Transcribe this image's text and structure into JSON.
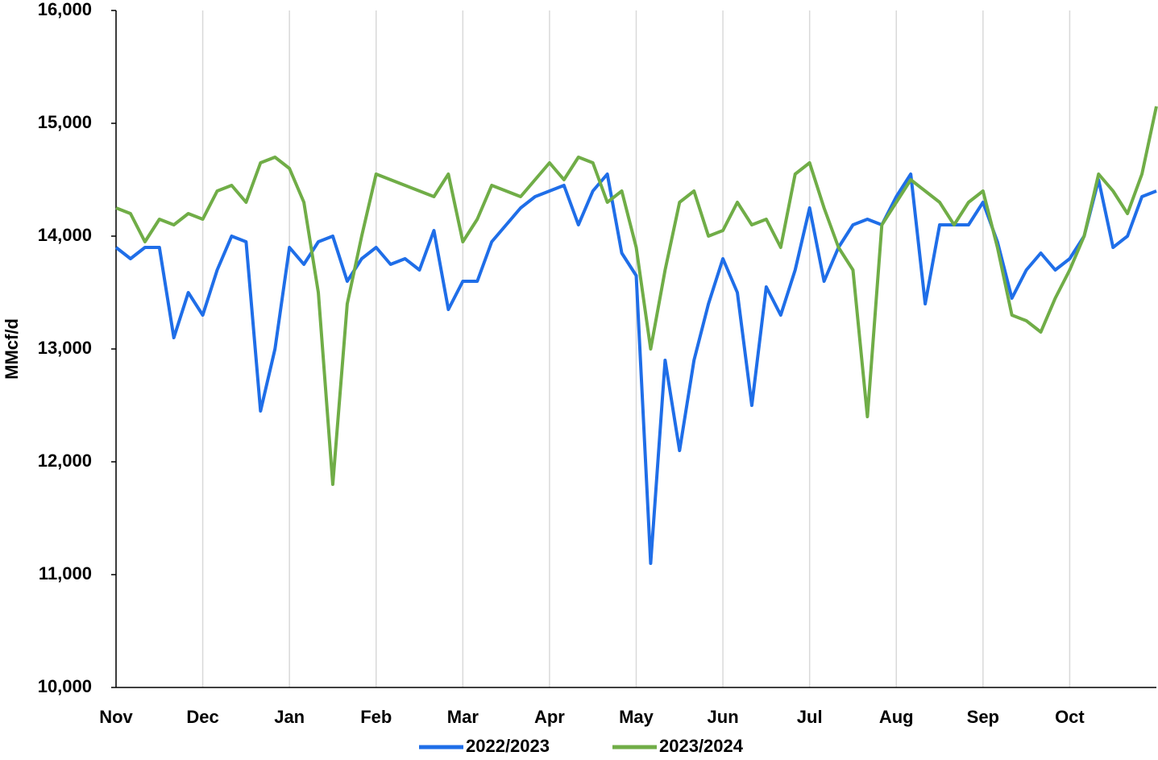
{
  "chart_data": {
    "type": "line",
    "y_label": "MMcf/d",
    "categories": [
      "Nov",
      null,
      null,
      null,
      null,
      null,
      "Dec",
      null,
      null,
      null,
      null,
      null,
      "Jan",
      null,
      null,
      null,
      null,
      null,
      "Feb",
      null,
      null,
      null,
      null,
      null,
      "Mar",
      null,
      null,
      null,
      null,
      null,
      "Apr",
      null,
      null,
      null,
      null,
      null,
      "May",
      null,
      null,
      null,
      null,
      null,
      "Jun",
      null,
      null,
      null,
      null,
      null,
      "Jul",
      null,
      null,
      null,
      null,
      null,
      "Aug",
      null,
      null,
      null,
      null,
      null,
      "Sep",
      null,
      null,
      null,
      null,
      null,
      "Oct",
      null,
      null,
      null,
      null,
      null,
      null
    ],
    "series": [
      {
        "name": "2022/2023",
        "color": "#1f6ee8",
        "values": [
          13900,
          13800,
          13900,
          13900,
          13100,
          13500,
          13300,
          13700,
          14000,
          13950,
          12450,
          13000,
          13900,
          13750,
          13950,
          14000,
          13600,
          13800,
          13900,
          13750,
          13800,
          13700,
          14050,
          13350,
          13600,
          13600,
          13950,
          14100,
          14250,
          14350,
          14400,
          14450,
          14100,
          14400,
          14550,
          13850,
          13650,
          11100,
          12900,
          12100,
          12900,
          13400,
          13800,
          13500,
          12500,
          13550,
          13300,
          13700,
          14250,
          13600,
          13900,
          14100,
          14150,
          14100,
          14350,
          14550,
          13400,
          14100,
          14100,
          14100,
          14300,
          13950,
          13450,
          13700,
          13850,
          13700,
          13800,
          14000,
          14500,
          13900,
          14000,
          14350,
          14400
        ]
      },
      {
        "name": "2023/2024",
        "color": "#70ad47",
        "values": [
          14250,
          14200,
          13950,
          14150,
          14100,
          14200,
          14150,
          14400,
          14450,
          14300,
          14650,
          14700,
          14600,
          14300,
          13500,
          11800,
          13400,
          14000,
          14550,
          14500,
          14450,
          14400,
          14350,
          14550,
          13950,
          14150,
          14450,
          14400,
          14350,
          14500,
          14650,
          14500,
          14700,
          14650,
          14300,
          14400,
          13900,
          13000,
          13700,
          14300,
          14400,
          14000,
          14050,
          14300,
          14100,
          14150,
          13900,
          14550,
          14650,
          14250,
          13900,
          13700,
          12400,
          14100,
          14300,
          14500,
          14400,
          14300,
          14100,
          14300,
          14400,
          13900,
          13300,
          13250,
          13150,
          13450,
          13700,
          14000,
          14550,
          14400,
          14200,
          14550,
          15150
        ]
      }
    ],
    "ylim": [
      10000,
      16000
    ],
    "yticks": [
      {
        "value": 10000,
        "label": "10,000"
      },
      {
        "value": 11000,
        "label": "11,000"
      },
      {
        "value": 12000,
        "label": "12,000"
      },
      {
        "value": 13000,
        "label": "13,000"
      },
      {
        "value": 14000,
        "label": "14,000"
      },
      {
        "value": 15000,
        "label": "15,000"
      },
      {
        "value": 16000,
        "label": "16,000"
      }
    ],
    "grid": true,
    "legend": "bottom"
  }
}
